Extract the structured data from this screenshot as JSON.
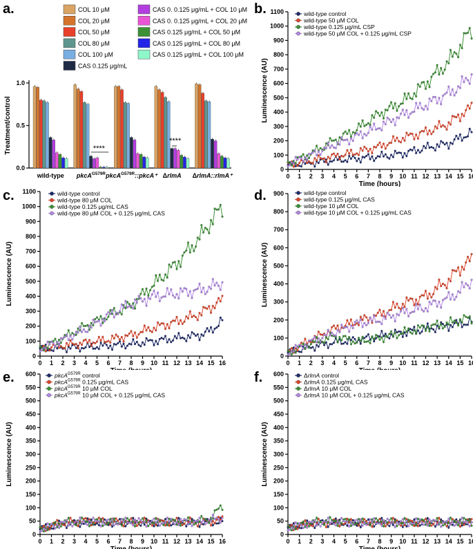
{
  "panels": {
    "a": "a.",
    "b": "b.",
    "c": "c.",
    "d": "d.",
    "e": "e.",
    "f": "f."
  },
  "chart_data": [
    {
      "id": "a",
      "type": "bar",
      "ylabel": "Treatment/control",
      "ylim": [
        0,
        1.0
      ],
      "yticks": [
        "0.0",
        "0.5",
        "1.0"
      ],
      "groups": [
        {
          "name": "wild-type",
          "values": [
            0.96,
            0.95,
            0.8,
            0.79,
            0.77,
            0.36,
            0.33,
            0.18,
            0.16,
            0.12,
            0.11
          ]
        },
        {
          "name": "pkcA",
          "sup": "G579R",
          "values": [
            0.98,
            0.93,
            0.9,
            0.77,
            0.75,
            0.14,
            0.11,
            0.12,
            0.01,
            0.01,
            0.01
          ]
        },
        {
          "name": "pkcA",
          "sup": "G579R",
          "suffix": "::pkcA⁺",
          "values": [
            0.96,
            0.96,
            0.92,
            0.77,
            0.76,
            0.36,
            0.33,
            0.17,
            0.16,
            0.13,
            0.12
          ]
        },
        {
          "name": "ΔrlmA",
          "values": [
            0.96,
            0.92,
            0.89,
            0.83,
            0.78,
            0.23,
            0.23,
            0.21,
            0.15,
            0.13,
            0.11
          ]
        },
        {
          "name": "ΔrlmA::rlmA⁺",
          "values": [
            0.99,
            0.98,
            0.88,
            0.79,
            0.78,
            0.34,
            0.32,
            0.17,
            0.14,
            0.12,
            0.11
          ]
        }
      ],
      "legend": [
        {
          "label": "COL 10 μM",
          "color": "#d9a464"
        },
        {
          "label": "COL 20 μM",
          "color": "#d4742b"
        },
        {
          "label": "COL 50 μM",
          "color": "#e8402a"
        },
        {
          "label": "COL 80 μM",
          "color": "#5e968e"
        },
        {
          "label": "COL 100 μM",
          "color": "#79aee2"
        },
        {
          "label": "CAS 0.125 μg/mL",
          "color": "#1f2b45"
        },
        {
          "label": "CAS 0. 0.125 μg/mL + COL 10 μM",
          "color": "#b23ee0"
        },
        {
          "label": "CAS 0. 0.125 μg/mL + COL 20 μM",
          "color": "#ea55d6"
        },
        {
          "label": "CAS 0.125 μg/mL + COL 50 μM",
          "color": "#3c9135"
        },
        {
          "label": "CAS 0.125 μg/mL + COL 80 μM",
          "color": "#2324e8"
        },
        {
          "label": "CAS 0.125 μg/mL + COL 100 μM",
          "color": "#8ff7c9"
        }
      ],
      "annotations": [
        "****",
        "****"
      ]
    },
    {
      "id": "b",
      "type": "line",
      "xlabel": "Time (hours)",
      "ylabel": "Luminescence (AU)",
      "xlim": [
        0,
        16
      ],
      "ylim": [
        0,
        1100
      ],
      "yticks": [
        0,
        100,
        200,
        300,
        400,
        500,
        600,
        700,
        800,
        900,
        1000,
        1100
      ],
      "series": [
        {
          "name": "wild-type control",
          "color": "#1f2b6b",
          "x": [
            0,
            2,
            4,
            6,
            8,
            10,
            12,
            14,
            15,
            16
          ],
          "y": [
            30,
            45,
            65,
            75,
            90,
            110,
            150,
            180,
            220,
            260
          ]
        },
        {
          "name": "wild-type 50 μM COL",
          "color": "#e2462b",
          "x": [
            0,
            2,
            4,
            6,
            8,
            10,
            12,
            14,
            15,
            16
          ],
          "y": [
            35,
            60,
            90,
            120,
            160,
            220,
            260,
            320,
            380,
            430
          ]
        },
        {
          "name": "wild-type 0.125 μg/mL CSP",
          "color": "#3c9135",
          "x": [
            0,
            2,
            4,
            6,
            8,
            10,
            12,
            14,
            15,
            16
          ],
          "y": [
            40,
            110,
            200,
            280,
            390,
            470,
            600,
            750,
            860,
            980
          ]
        },
        {
          "name": "wild-type 50 μM COL + 0.125 μg/mL CSP",
          "color": "#b58ae8",
          "x": [
            0,
            2,
            4,
            6,
            8,
            10,
            12,
            14,
            15,
            16
          ],
          "y": [
            40,
            100,
            170,
            230,
            300,
            380,
            450,
            530,
            580,
            660
          ]
        }
      ]
    },
    {
      "id": "c",
      "type": "line",
      "xlabel": "Time (hours)",
      "ylabel": "Luminescence (AU)",
      "xlim": [
        0,
        16
      ],
      "ylim": [
        0,
        1100
      ],
      "yticks": [
        0,
        100,
        200,
        300,
        400,
        500,
        600,
        700,
        800,
        900,
        1000,
        1100
      ],
      "series": [
        {
          "name": "wild-type control",
          "color": "#1f2b6b",
          "x": [
            0,
            2,
            4,
            6,
            8,
            10,
            12,
            14,
            15,
            16
          ],
          "y": [
            50,
            55,
            60,
            70,
            80,
            100,
            120,
            140,
            170,
            240
          ]
        },
        {
          "name": "wild-type 80 μM COL",
          "color": "#e2462b",
          "x": [
            0,
            2,
            4,
            6,
            8,
            10,
            12,
            14,
            15,
            16
          ],
          "y": [
            50,
            70,
            90,
            110,
            140,
            190,
            230,
            280,
            330,
            370
          ]
        },
        {
          "name": "wild-type 0.125 μg/mL CAS",
          "color": "#3c9135",
          "x": [
            0,
            2,
            4,
            6,
            8,
            10,
            12,
            14,
            15,
            16
          ],
          "y": [
            50,
            120,
            200,
            270,
            340,
            480,
            620,
            790,
            900,
            1000
          ]
        },
        {
          "name": "wild-type 80 μM COL + 0.125 μg/mL CAS",
          "color": "#b58ae8",
          "x": [
            0,
            2,
            4,
            6,
            8,
            10,
            12,
            14,
            15,
            16
          ],
          "y": [
            50,
            110,
            180,
            270,
            350,
            400,
            420,
            440,
            460,
            490
          ]
        }
      ]
    },
    {
      "id": "d",
      "type": "line",
      "xlabel": "Time (hours)",
      "ylabel": "Luminescence (AU)",
      "xlim": [
        0,
        16
      ],
      "ylim": [
        0,
        900
      ],
      "yticks": [
        0,
        100,
        200,
        300,
        400,
        500,
        600,
        700,
        800,
        900
      ],
      "series": [
        {
          "name": "wild-type control",
          "color": "#1f2b6b",
          "x": [
            0,
            2,
            4,
            6,
            8,
            10,
            12,
            14,
            15,
            16
          ],
          "y": [
            20,
            50,
            75,
            90,
            110,
            130,
            150,
            170,
            180,
            190
          ]
        },
        {
          "name": "wild-type 0.125 μg/mL CAS",
          "color": "#e2462b",
          "x": [
            0,
            2,
            4,
            6,
            8,
            10,
            12,
            14,
            15,
            16
          ],
          "y": [
            20,
            90,
            150,
            190,
            230,
            290,
            330,
            420,
            490,
            530
          ]
        },
        {
          "name": "wild-type 10 μM COL",
          "color": "#3c9135",
          "x": [
            0,
            2,
            4,
            6,
            8,
            10,
            12,
            14,
            15,
            16
          ],
          "y": [
            20,
            70,
            110,
            80,
            100,
            130,
            160,
            180,
            200,
            210
          ]
        },
        {
          "name": "wild-type 10 μM COL + 0.125 μg/mL CAS",
          "color": "#b58ae8",
          "x": [
            0,
            2,
            4,
            6,
            8,
            10,
            12,
            14,
            15,
            16
          ],
          "y": [
            20,
            80,
            130,
            180,
            200,
            240,
            270,
            320,
            360,
            420
          ]
        }
      ]
    },
    {
      "id": "e",
      "type": "line",
      "xlabel": "Time (hours)",
      "ylabel": "Luminescence (AU)",
      "xlim": [
        0,
        16
      ],
      "ylim": [
        0,
        600
      ],
      "yticks": [
        0,
        50,
        100,
        150,
        200,
        250,
        300,
        350,
        400,
        450,
        500,
        550,
        600
      ],
      "series": [
        {
          "name": "pkcA",
          "sup": "G579R",
          "rest": " control",
          "color": "#1f2b6b",
          "x": [
            0,
            2,
            4,
            6,
            8,
            10,
            12,
            14,
            15,
            16
          ],
          "y": [
            20,
            40,
            45,
            45,
            45,
            45,
            45,
            45,
            45,
            50
          ]
        },
        {
          "name": "pkcA",
          "sup": "G579R",
          "rest": " 0.125 μg/mL CAS",
          "color": "#e2462b",
          "x": [
            0,
            2,
            4,
            6,
            8,
            10,
            12,
            14,
            15,
            16
          ],
          "y": [
            20,
            45,
            50,
            48,
            47,
            45,
            48,
            45,
            50,
            55
          ]
        },
        {
          "name": "pkcA",
          "sup": "G579R",
          "rest": " 10 μM COL",
          "color": "#3c9135",
          "x": [
            0,
            2,
            4,
            6,
            8,
            10,
            12,
            14,
            15,
            16
          ],
          "y": [
            20,
            45,
            48,
            45,
            48,
            45,
            48,
            50,
            60,
            110
          ]
        },
        {
          "name": "pkcA",
          "sup": "G579R",
          "rest": " 10 μM COL + 0.125 μg/mL CAS",
          "color": "#b58ae8",
          "x": [
            0,
            2,
            4,
            6,
            8,
            10,
            12,
            14,
            15,
            16
          ],
          "y": [
            20,
            42,
            48,
            46,
            48,
            46,
            48,
            47,
            55,
            60
          ]
        }
      ]
    },
    {
      "id": "f",
      "type": "line",
      "xlabel": "Time (hours)",
      "ylabel": "Luminescence (AU)",
      "xlim": [
        0,
        16
      ],
      "ylim": [
        0,
        600
      ],
      "yticks": [
        0,
        50,
        100,
        150,
        200,
        250,
        300,
        350,
        400,
        450,
        500,
        550,
        600
      ],
      "series": [
        {
          "name": "ΔrlmA",
          "rest": " control",
          "color": "#1f2b6b",
          "x": [
            0,
            2,
            4,
            6,
            8,
            10,
            12,
            14,
            15,
            16
          ],
          "y": [
            25,
            40,
            45,
            42,
            45,
            42,
            45,
            42,
            45,
            45
          ]
        },
        {
          "name": "ΔrlmA",
          "rest": " 0.125 μg/mL CAS",
          "color": "#e2462b",
          "x": [
            0,
            2,
            4,
            6,
            8,
            10,
            12,
            14,
            15,
            16
          ],
          "y": [
            25,
            42,
            45,
            45,
            45,
            45,
            45,
            45,
            45,
            45
          ]
        },
        {
          "name": "ΔrlmA",
          "rest": " 10 μM COL",
          "color": "#3c9135",
          "x": [
            0,
            2,
            4,
            6,
            8,
            10,
            12,
            14,
            15,
            16
          ],
          "y": [
            25,
            45,
            50,
            45,
            48,
            45,
            48,
            45,
            50,
            48
          ]
        },
        {
          "name": "ΔrlmA",
          "rest": " 10 μM COL + 0.125 μg/mL CAS",
          "color": "#b58ae8",
          "x": [
            0,
            2,
            4,
            6,
            8,
            10,
            12,
            14,
            15,
            16
          ],
          "y": [
            25,
            42,
            47,
            45,
            46,
            44,
            46,
            44,
            46,
            45
          ]
        }
      ]
    }
  ]
}
